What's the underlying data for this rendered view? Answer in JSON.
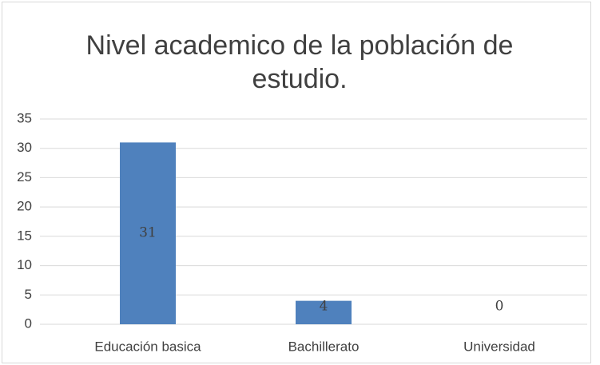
{
  "chart_data": {
    "type": "bar",
    "title": "Nivel academico de la población de estudio.",
    "categories": [
      "Educación basica",
      "Bachillerato",
      "Universidad"
    ],
    "values": [
      31,
      4,
      0
    ],
    "color": "#4f81bd",
    "ylim": [
      0,
      35
    ],
    "yticks": [
      0,
      5,
      10,
      15,
      20,
      25,
      30,
      35
    ],
    "grid": true,
    "data_labels": true
  }
}
